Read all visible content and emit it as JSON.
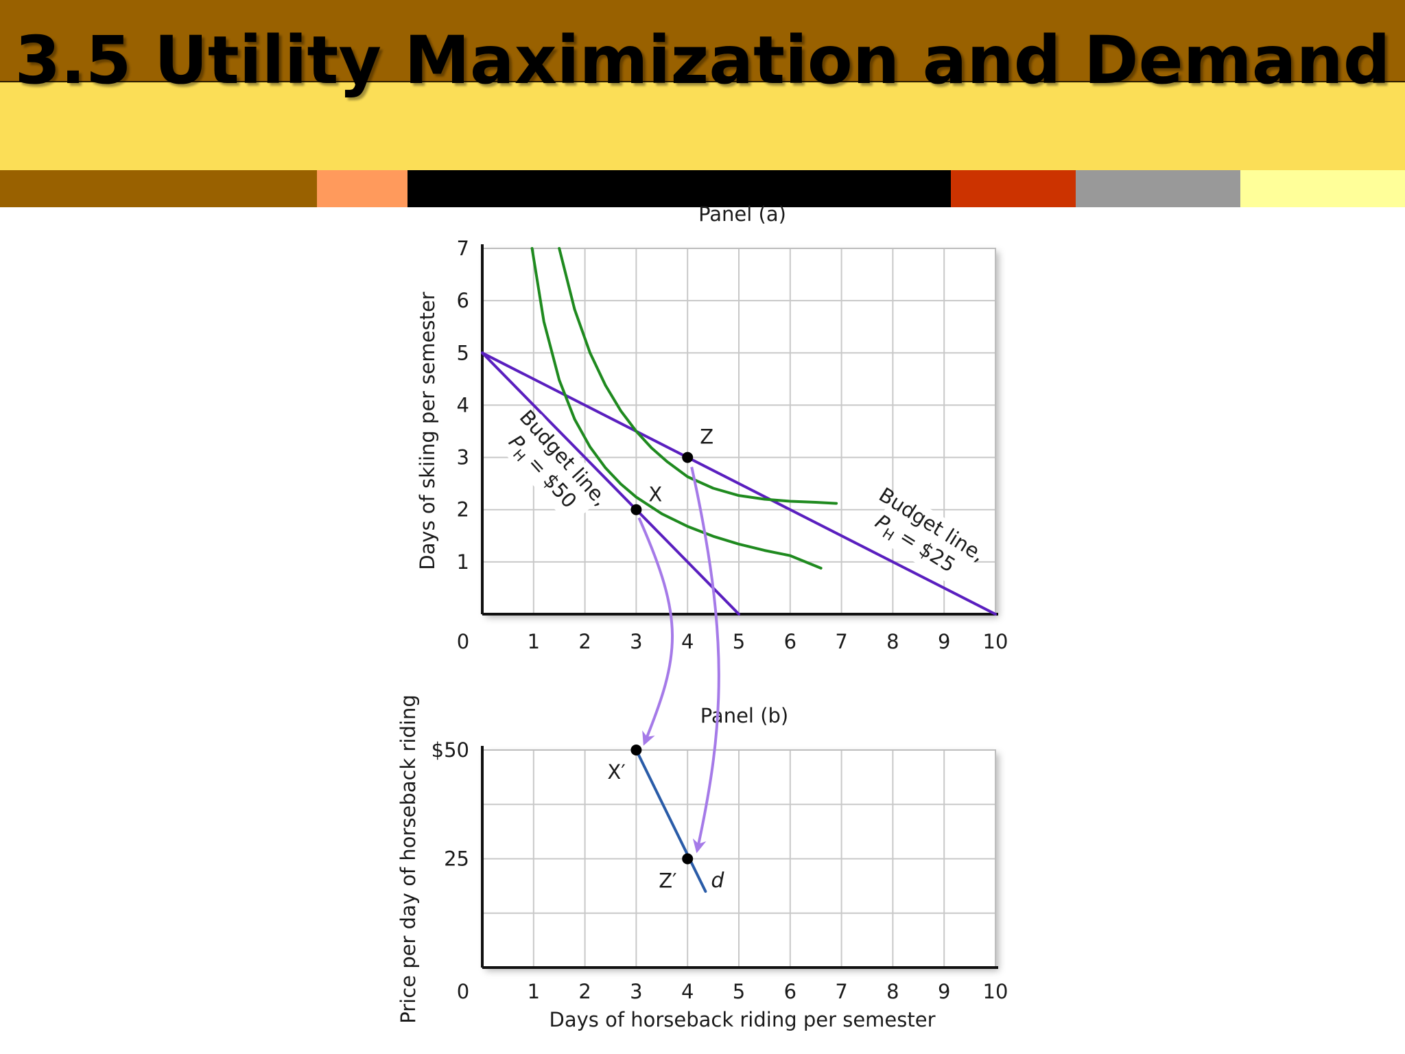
{
  "slide": {
    "title": "3.5 Utility Maximization and Demand"
  },
  "colors": {
    "header_brown": "#996100",
    "header_yellow": "#fbde57",
    "strip": [
      "#996100",
      "#ff9a5c",
      "#000000",
      "#cc3300",
      "#999999",
      "#ffff99"
    ],
    "budget_line": "#5a1fbf",
    "indifference_curve": "#1f8a1f",
    "demand_curve": "#2a5ca8",
    "arrow": "#a57ae8",
    "grid": "#c8c8c8"
  },
  "chart_data": [
    {
      "type": "line",
      "title": "Panel (a)",
      "xlabel": "",
      "ylabel": "Days of skiing per semester",
      "xlim": [
        0,
        10
      ],
      "ylim": [
        0,
        7
      ],
      "x_ticks": [
        "0",
        "1",
        "2",
        "3",
        "4",
        "5",
        "6",
        "7",
        "8",
        "9",
        "10"
      ],
      "y_ticks": [
        "1",
        "2",
        "3",
        "4",
        "5",
        "6",
        "7"
      ],
      "grid": true,
      "series": [
        {
          "kind": "budget",
          "x": [
            0,
            5
          ],
          "y": [
            5,
            0
          ]
        },
        {
          "kind": "budget",
          "x": [
            0,
            10
          ],
          "y": [
            5,
            0
          ]
        },
        {
          "kind": "indifference",
          "x": [
            0.97,
            1.2,
            1.5,
            1.8,
            2.1,
            2.4,
            2.7,
            3.0,
            3.5,
            4.0,
            4.5,
            5.0,
            5.5,
            6.0,
            6.6
          ],
          "y": [
            7.0,
            5.6,
            4.48,
            3.73,
            3.2,
            2.8,
            2.49,
            2.24,
            1.92,
            1.68,
            1.49,
            1.34,
            1.22,
            1.12,
            0.88
          ]
        },
        {
          "kind": "indifference",
          "x": [
            1.5,
            1.8,
            2.1,
            2.4,
            2.7,
            3.0,
            3.3,
            3.6,
            4.0,
            4.5,
            5.0,
            5.5,
            6.0,
            6.5,
            6.9
          ],
          "y": [
            7.0,
            5.83,
            5.0,
            4.38,
            3.89,
            3.5,
            3.18,
            2.92,
            2.63,
            2.41,
            2.27,
            2.2,
            2.16,
            2.14,
            2.12
          ]
        }
      ],
      "points": [
        {
          "label": "X",
          "x": 3,
          "y": 2
        },
        {
          "label": "Z",
          "x": 4,
          "y": 3
        }
      ],
      "annotations": [
        {
          "line1": "Budget line,",
          "line2_prefix": "P",
          "line2_sub": "H",
          "line2_suffix": " = $50"
        },
        {
          "line1": "Budget line,",
          "line2_prefix": "P",
          "line2_sub": "H",
          "line2_suffix": " = $25"
        }
      ]
    },
    {
      "type": "line",
      "title": "Panel (b)",
      "xlabel": "Days of horseback riding per semester",
      "ylabel": "Price per day of horseback riding",
      "xlim": [
        0,
        10
      ],
      "ylim": [
        0,
        50
      ],
      "x_ticks": [
        "0",
        "1",
        "2",
        "3",
        "4",
        "5",
        "6",
        "7",
        "8",
        "9",
        "10"
      ],
      "y_ticks": [
        {
          "value": 25,
          "label": "25"
        },
        {
          "value": 50,
          "label": "$50"
        }
      ],
      "grid": true,
      "series": [
        {
          "name": "d",
          "x": [
            3,
            4.35
          ],
          "y": [
            50,
            17.5
          ]
        }
      ],
      "points": [
        {
          "label": "X′",
          "x": 3,
          "y": 50
        },
        {
          "label": "Z′",
          "x": 4,
          "y": 25
        }
      ]
    }
  ]
}
